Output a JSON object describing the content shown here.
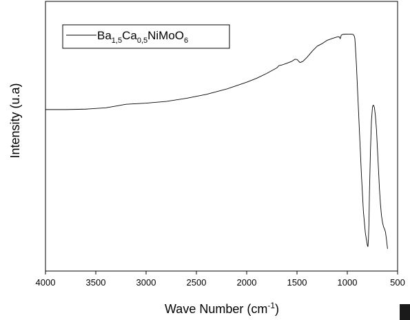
{
  "chart_data": {
    "type": "line",
    "title": "",
    "xlabel": {
      "base": "Wave Number (cm",
      "sup": "-1",
      "close": ")"
    },
    "ylabel": "Intensity (u.a)",
    "xlim": [
      4000,
      500
    ],
    "ylim": [
      0,
      100
    ],
    "x_ticks": [
      4000,
      3500,
      3000,
      2500,
      2000,
      1500,
      1000,
      500
    ],
    "y_ticks_shown": false,
    "grid": false,
    "legend": {
      "position": "top-left",
      "parts": [
        {
          "t": "Ba",
          "sub": false
        },
        {
          "t": "1,5",
          "sub": true
        },
        {
          "t": "Ca",
          "sub": false
        },
        {
          "t": "0,5",
          "sub": true
        },
        {
          "t": "NiMoO",
          "sub": false
        },
        {
          "t": "6",
          "sub": true
        }
      ]
    },
    "series": [
      {
        "name": "Ba1,5Ca0,5NiMoO6",
        "color": "#000000",
        "x": [
          4000,
          3800,
          3600,
          3400,
          3300,
          3200,
          3000,
          2800,
          2600,
          2400,
          2200,
          2000,
          1900,
          1800,
          1700,
          1680,
          1650,
          1600,
          1550,
          1520,
          1500,
          1470,
          1440,
          1400,
          1350,
          1300,
          1250,
          1200,
          1150,
          1100,
          1080,
          1070,
          1060,
          1050,
          1040,
          1000,
          960,
          940,
          930,
          925,
          920,
          910,
          900,
          880,
          860,
          840,
          820,
          800,
          795,
          790,
          785,
          780,
          770,
          760,
          750,
          745,
          740,
          735,
          730,
          720,
          710,
          700,
          690,
          680,
          670,
          660,
          650,
          640,
          630,
          620,
          610,
          600
        ],
        "values": [
          64.1,
          64.1,
          64.3,
          64.9,
          65.7,
          66.5,
          67.0,
          67.8,
          69.2,
          71.0,
          73.4,
          76.5,
          78.3,
          80.5,
          83.0,
          84.0,
          84.3,
          85.1,
          86.0,
          86.9,
          86.8,
          85.4,
          86.0,
          87.8,
          90.5,
          92.8,
          94.0,
          95.5,
          96.3,
          97.0,
          97.1,
          96.2,
          97.8,
          98.1,
          98.2,
          98.3,
          98.3,
          98.1,
          97.3,
          96.3,
          93.0,
          85.0,
          75.0,
          55.0,
          35.0,
          18.0,
          8.0,
          2.5,
          2.0,
          5.0,
          12.0,
          26.0,
          45.0,
          59.0,
          65.0,
          66.0,
          66.1,
          65.6,
          64.9,
          61.0,
          55.0,
          46.0,
          37.0,
          28.0,
          21.0,
          16.0,
          13.0,
          11.0,
          10.0,
          8.5,
          5.0,
          1.0
        ]
      }
    ]
  }
}
